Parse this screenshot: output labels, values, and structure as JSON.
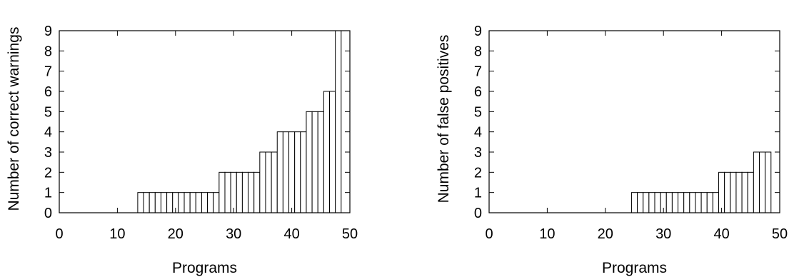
{
  "chart_data": [
    {
      "type": "bar",
      "xlabel": "Programs",
      "ylabel": "Number of correct warnings",
      "xlim": [
        0,
        50
      ],
      "ylim": [
        0,
        9
      ],
      "xticks": [
        "0",
        "10",
        "20",
        "30",
        "40",
        "50"
      ],
      "yticks": [
        "0",
        "1",
        "2",
        "3",
        "4",
        "5",
        "6",
        "7",
        "8",
        "9"
      ],
      "grid": false,
      "bar_color": "#ffffff",
      "edge_color": "#000000",
      "x": [
        1,
        2,
        3,
        4,
        5,
        6,
        7,
        8,
        9,
        10,
        11,
        12,
        13,
        14,
        15,
        16,
        17,
        18,
        19,
        20,
        21,
        22,
        23,
        24,
        25,
        26,
        27,
        28,
        29,
        30,
        31,
        32,
        33,
        34,
        35,
        36,
        37,
        38,
        39,
        40,
        41,
        42,
        43,
        44,
        45,
        46,
        47,
        48
      ],
      "values": [
        0,
        0,
        0,
        0,
        0,
        0,
        0,
        0,
        0,
        0,
        0,
        0,
        0,
        1,
        1,
        1,
        1,
        1,
        1,
        1,
        1,
        1,
        1,
        1,
        1,
        1,
        1,
        2,
        2,
        2,
        2,
        2,
        2,
        2,
        3,
        3,
        3,
        4,
        4,
        4,
        4,
        4,
        5,
        5,
        5,
        6,
        6,
        9
      ]
    },
    {
      "type": "bar",
      "xlabel": "Programs",
      "ylabel": "Number of false positives",
      "xlim": [
        0,
        50
      ],
      "ylim": [
        0,
        9
      ],
      "xticks": [
        "0",
        "10",
        "20",
        "30",
        "40",
        "50"
      ],
      "yticks": [
        "0",
        "1",
        "2",
        "3",
        "4",
        "5",
        "6",
        "7",
        "8",
        "9"
      ],
      "grid": false,
      "bar_color": "#ffffff",
      "edge_color": "#000000",
      "x": [
        1,
        2,
        3,
        4,
        5,
        6,
        7,
        8,
        9,
        10,
        11,
        12,
        13,
        14,
        15,
        16,
        17,
        18,
        19,
        20,
        21,
        22,
        23,
        24,
        25,
        26,
        27,
        28,
        29,
        30,
        31,
        32,
        33,
        34,
        35,
        36,
        37,
        38,
        39,
        40,
        41,
        42,
        43,
        44,
        45,
        46,
        47,
        48
      ],
      "values": [
        0,
        0,
        0,
        0,
        0,
        0,
        0,
        0,
        0,
        0,
        0,
        0,
        0,
        0,
        0,
        0,
        0,
        0,
        0,
        0,
        0,
        0,
        0,
        0,
        1,
        1,
        1,
        1,
        1,
        1,
        1,
        1,
        1,
        1,
        1,
        1,
        1,
        1,
        1,
        2,
        2,
        2,
        2,
        2,
        2,
        3,
        3,
        3
      ]
    }
  ]
}
